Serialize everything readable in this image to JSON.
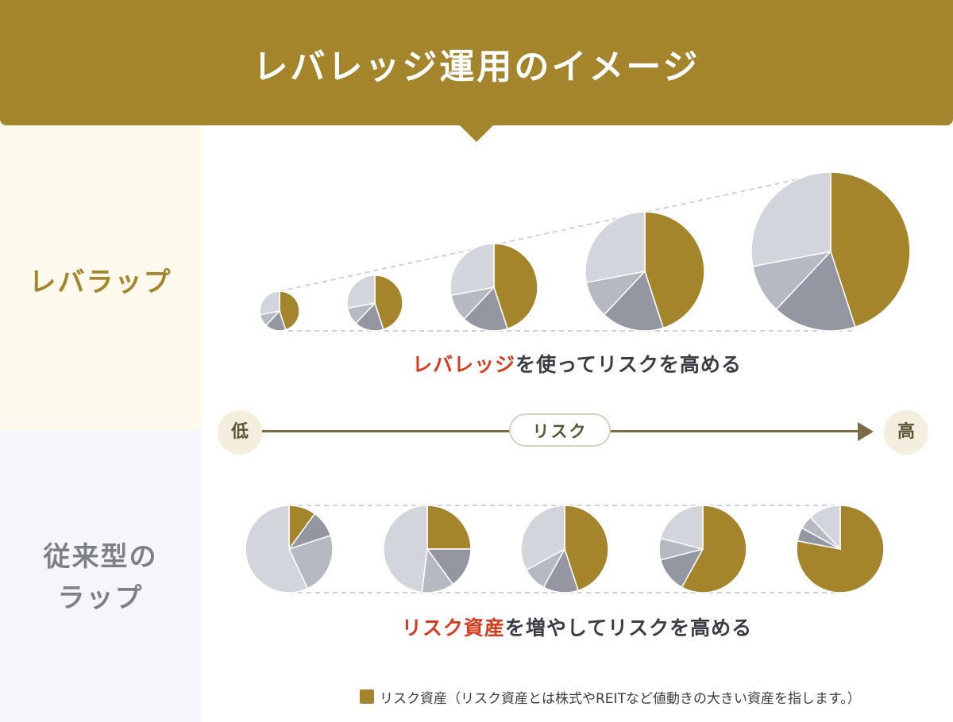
{
  "header": {
    "title": "レバレッジ運用のイメージ"
  },
  "rows": {
    "top": {
      "label": "レバラップ",
      "caption_highlight": "レバレッジ",
      "caption_rest": "を使ってリスクを高める"
    },
    "bottom": {
      "label_line1": "従来型の",
      "label_line2": "ラップ",
      "caption_highlight": "リスク資産",
      "caption_rest": "を増やしてリスクを高める"
    }
  },
  "axis": {
    "low": "低",
    "label": "リスク",
    "high": "高"
  },
  "legend": {
    "text": "リスク資産（リスク資産とは株式やREITなど値動きの大きい資産を指します。）"
  },
  "colors": {
    "accent": "#a5852b",
    "highlight": "#d93b1d",
    "gray_dark": "#9497a2",
    "gray_mid": "#b6b8c2",
    "gray_light": "#d3d5dc"
  },
  "chart_data": [
    {
      "type": "pie",
      "name": "leverage-wrap",
      "segments": [
        "risk-asset",
        "other-1",
        "other-2",
        "other-3"
      ],
      "pies": [
        {
          "values": [
            45,
            17,
            10,
            28
          ]
        },
        {
          "values": [
            45,
            17,
            10,
            28
          ]
        },
        {
          "values": [
            45,
            17,
            10,
            28
          ]
        },
        {
          "values": [
            45,
            17,
            10,
            28
          ]
        },
        {
          "values": [
            45,
            17,
            10,
            28
          ]
        }
      ],
      "relative_size": [
        1,
        1.4,
        2.2,
        3,
        4
      ]
    },
    {
      "type": "pie",
      "name": "conventional-wrap",
      "segments": [
        "risk-asset",
        "other-1",
        "other-2",
        "other-3"
      ],
      "pies": [
        {
          "values": [
            10,
            10,
            23,
            57
          ]
        },
        {
          "values": [
            25,
            15,
            12,
            48
          ]
        },
        {
          "values": [
            45,
            13,
            9,
            33
          ]
        },
        {
          "values": [
            58,
            13,
            8,
            21
          ]
        },
        {
          "values": [
            78,
            5,
            5,
            12
          ]
        }
      ],
      "relative_size": [
        1,
        1,
        1,
        1,
        1
      ]
    }
  ]
}
